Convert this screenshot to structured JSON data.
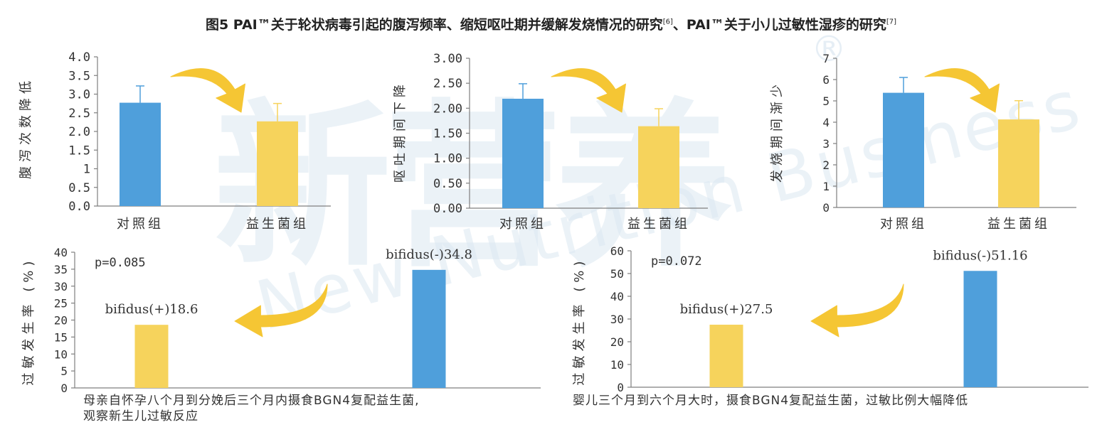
{
  "figure": {
    "title": "图5 PAI™关于轮状病毒引起的腹泻频率、缩短呕吐期并缓解发烧情况的研究",
    "title_ref1": "[6]",
    "title_mid": "、PAI™关于小儿过敏性湿疹的研究",
    "title_ref2": "[7]"
  },
  "watermark": {
    "logo_text": "新营养",
    "sub_text": "New Nutrition Business",
    "reg_mark": "®"
  },
  "colors": {
    "blue": "#4f9fdb",
    "yellow": "#f6d35c",
    "arrow": "#f5c634",
    "axis": "#7f7f7f"
  },
  "captions": {
    "left_line1": "母亲自怀孕八个月到分娩后三个月内摄食BGN4复配益生菌,",
    "left_line2": "观察新生儿过敏反应",
    "right": "婴儿三个月到六个月大时，摄食BGN4复配益生菌，过敏比例大幅降低"
  },
  "chart_data": [
    {
      "type": "bar",
      "categories": [
        "对照组",
        "益生菌组"
      ],
      "values": [
        2.77,
        2.27
      ],
      "errors": [
        0.45,
        0.48
      ],
      "ylabel": "腹泻次数降低",
      "ylim": [
        0,
        4
      ],
      "yticks": [
        "0.0",
        "0.5",
        "1",
        "1.5",
        "2.0",
        "2.5",
        "3.0",
        "3.5",
        "4.0"
      ],
      "bar_colors": [
        "#4f9fdb",
        "#f6d35c"
      ],
      "grid": false
    },
    {
      "type": "bar",
      "categories": [
        "对照组",
        "益生菌组"
      ],
      "values": [
        2.19,
        1.64
      ],
      "errors": [
        0.3,
        0.35
      ],
      "ylabel": "呕吐期间下降",
      "ylim": [
        0,
        3
      ],
      "yticks": [
        "0.00",
        "0.50",
        "1.00",
        "1.50",
        "2.00",
        "2.50",
        "3.00"
      ],
      "bar_colors": [
        "#4f9fdb",
        "#f6d35c"
      ],
      "grid": false
    },
    {
      "type": "bar",
      "categories": [
        "对照组",
        "益生菌组"
      ],
      "values": [
        5.38,
        4.13
      ],
      "errors": [
        0.72,
        0.88
      ],
      "ylabel": "发烧期间渐少",
      "ylim": [
        0,
        7
      ],
      "yticks": [
        "0",
        "1",
        "2",
        "3",
        "4",
        "5",
        "6",
        "7"
      ],
      "bar_colors": [
        "#4f9fdb",
        "#f6d35c"
      ],
      "grid": false
    },
    {
      "type": "bar",
      "categories": [
        "bifidus(+)",
        "bifidus(-)"
      ],
      "values": [
        18.6,
        34.8
      ],
      "data_labels": [
        "bifidus(+)18.6",
        "bifidus(-)34.8"
      ],
      "annotation": "p=0.085",
      "ylabel": "过敏发生率 (%)",
      "ylim": [
        0,
        40
      ],
      "yticks": [
        "0",
        "5",
        "10",
        "15",
        "20",
        "25",
        "30",
        "35",
        "40"
      ],
      "bar_colors": [
        "#f6d35c",
        "#4f9fdb"
      ],
      "grid": false
    },
    {
      "type": "bar",
      "categories": [
        "bifidus(+)",
        "bifidus(-)"
      ],
      "values": [
        27.5,
        51.16
      ],
      "data_labels": [
        "bifidus(+)27.5",
        "bifidus(-)51.16"
      ],
      "annotation": "p=0.072",
      "ylabel": "过敏发生率 (%)",
      "ylim": [
        0,
        60
      ],
      "yticks": [
        "0",
        "10",
        "20",
        "30",
        "40",
        "50",
        "60"
      ],
      "bar_colors": [
        "#f6d35c",
        "#4f9fdb"
      ],
      "grid": false
    }
  ]
}
